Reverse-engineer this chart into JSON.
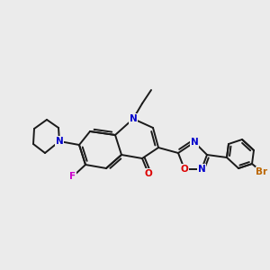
{
  "bg_color": "#ebebeb",
  "bond_color": "#1a1a1a",
  "atom_colors": {
    "N": "#0000cc",
    "O_carbonyl": "#dd0000",
    "O_oxadiazole": "#dd0000",
    "F": "#cc00cc",
    "Br": "#bb6600",
    "C": "#1a1a1a"
  },
  "figsize": [
    3.0,
    3.0
  ],
  "dpi": 100
}
